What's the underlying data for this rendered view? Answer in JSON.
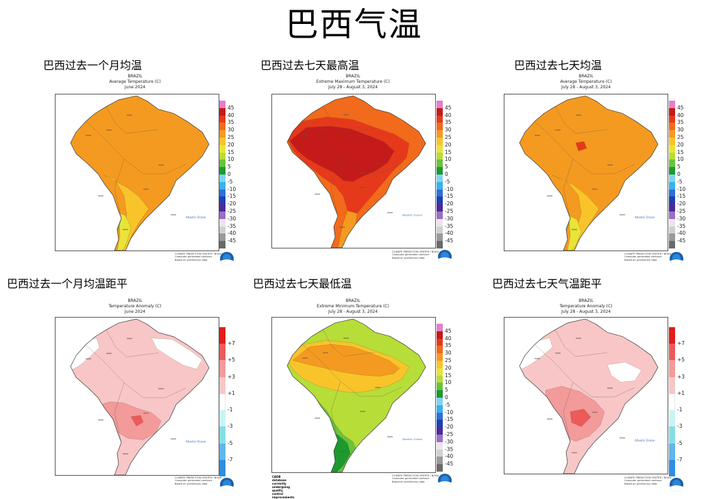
{
  "title": "巴西气温",
  "header": {
    "country": "BRAZIL",
    "credit_lines": [
      "CLIMATE PREDICTION CENTER / NOAA",
      "Computer generated contours",
      "Based on preliminary data"
    ]
  },
  "panels": [
    {
      "caption": "巴西过去一个月均温",
      "subtitle": "Average Temperature (C)",
      "period": "June 2024",
      "palette": "avg",
      "legend": "temp"
    },
    {
      "caption": "巴西过去七天最高温",
      "subtitle": "Extreme Maximum Temperature (C)",
      "period": "July 28 - August 3, 2024",
      "palette": "max",
      "legend": "temp"
    },
    {
      "caption": "巴西过去七天均温",
      "subtitle": "Average Temperature (C)",
      "period": "July 28 - August 3, 2024",
      "palette": "avg7",
      "legend": "temp"
    },
    {
      "caption": "巴西过去一个月均温距平",
      "subtitle": "Temperature Anomaly (C)",
      "period": "June 2024",
      "palette": "anom",
      "legend": "anom"
    },
    {
      "caption": "巴西过去七天最低温",
      "subtitle": "Extreme Minimum Temperature (C)",
      "period": "July 28 - August 3, 2024",
      "palette": "min",
      "legend": "temp"
    },
    {
      "caption": "巴西过去七天气温距平",
      "subtitle": "Temperature Anomaly (C)",
      "period": "July 28 - August 3, 2024",
      "palette": "anom7",
      "legend": "anom"
    }
  ],
  "legends": {
    "temp": {
      "labels": [
        "45",
        "40",
        "35",
        "30",
        "25",
        "20",
        "15",
        "10",
        "5",
        "0",
        "-5",
        "-10",
        "-15",
        "-20",
        "-25",
        "-30",
        "-35",
        "-40",
        "-45"
      ],
      "colors": [
        "#e37fcc",
        "#c41a1a",
        "#e6391b",
        "#f26a1b",
        "#f59a20",
        "#f9c42a",
        "#e9e437",
        "#b7dd38",
        "#69c23d",
        "#1c9a2e",
        "#7fd3f0",
        "#36b2ea",
        "#2e6fd6",
        "#1e3fb5",
        "#4c2a98",
        "#9a6fc6",
        "#efe1f0",
        "#d0d0d0",
        "#9a9a9a",
        "#6a6a6a"
      ]
    },
    "anom": {
      "labels": [
        "+7",
        "+5",
        "+3",
        "+1",
        "-1",
        "-3",
        "-5",
        "-7"
      ],
      "colors": [
        "#e01c1c",
        "#ec5a5a",
        "#f39a9a",
        "#f8c6c6",
        "#ffffff",
        "#cbf3f3",
        "#84dfe3",
        "#62b6e8",
        "#2f8ee0"
      ]
    }
  },
  "map_labels": {
    "ocean": "Atlantic Ocean",
    "brazil": "BRASIL"
  },
  "db_note": [
    "CADB database currently undergoing",
    "quality control improvements"
  ]
}
